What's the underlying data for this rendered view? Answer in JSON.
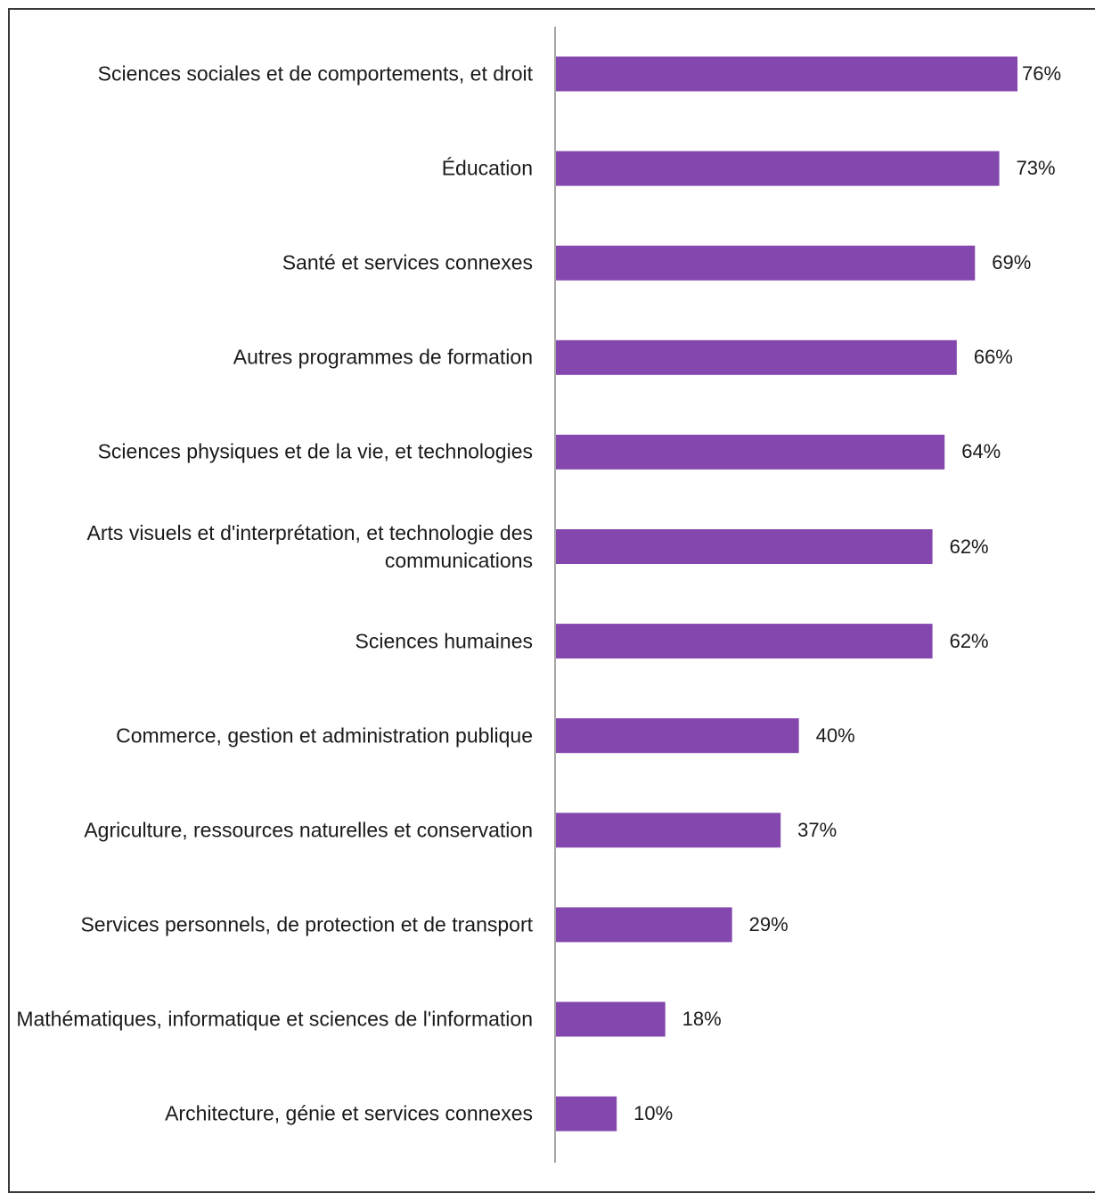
{
  "chart_data": {
    "type": "bar",
    "orientation": "horizontal",
    "categories": [
      "Sciences sociales et de comportements, et droit",
      "Éducation",
      "Santé et services connexes",
      "Autres programmes de formation",
      "Sciences physiques et de la vie, et technologies",
      "Arts visuels et d'interprétation, et technologie des communications",
      "Sciences humaines",
      "Commerce, gestion et administration publique",
      "Agriculture, ressources naturelles et conservation",
      "Services personnels, de protection et de transport",
      "Mathématiques, informatique et sciences de l'information",
      "Architecture, génie et services connexes"
    ],
    "values": [
      76,
      73,
      69,
      66,
      64,
      62,
      62,
      40,
      37,
      29,
      18,
      10
    ],
    "value_labels": [
      "76%",
      "73%",
      "69%",
      "66%",
      "64%",
      "62%",
      "62%",
      "40%",
      "37%",
      "29%",
      "18%",
      "10%"
    ],
    "unit": "%",
    "xlim": [
      0,
      100
    ],
    "grid": false,
    "legend": "none",
    "colors": {
      "bar": "#8347AD",
      "axis": "#A6A6A6",
      "text": "#1A1A1A",
      "frame": "#3A3A3A"
    }
  }
}
